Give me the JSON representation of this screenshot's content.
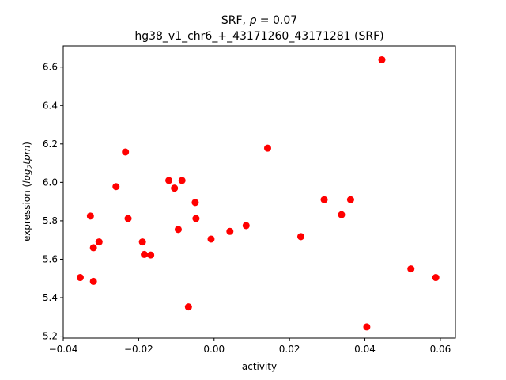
{
  "chart_data": {
    "type": "scatter",
    "title_prefix": "SRF, ",
    "title_rho_symbol": "ρ",
    "title_rho_value": " = 0.07",
    "subtitle": "hg38_v1_chr6_+_43171260_43171281 (SRF)",
    "xlabel": "activity",
    "ylabel_prefix": "expression (",
    "ylabel_log": "log",
    "ylabel_sub": "2",
    "ylabel_tpm": "tpm",
    "ylabel_suffix": ")",
    "xlim": [
      -0.04,
      0.064
    ],
    "ylim": [
      5.19,
      6.71
    ],
    "x_ticks": [
      -0.04,
      -0.02,
      0.0,
      0.02,
      0.04,
      0.06
    ],
    "x_tick_labels": [
      "−0.04",
      "−0.02",
      "0.00",
      "0.02",
      "0.04",
      "0.06"
    ],
    "y_ticks": [
      5.2,
      5.4,
      5.6,
      5.8,
      6.0,
      6.2,
      6.4,
      6.6
    ],
    "y_tick_labels": [
      "5.2",
      "5.4",
      "5.6",
      "5.8",
      "6.0",
      "6.2",
      "6.4",
      "6.6"
    ],
    "grid": false,
    "marker_color": "#ff0000",
    "points": [
      {
        "x": -0.0355,
        "y": 5.505
      },
      {
        "x": -0.0328,
        "y": 5.825
      },
      {
        "x": -0.032,
        "y": 5.66
      },
      {
        "x": -0.032,
        "y": 5.485
      },
      {
        "x": -0.0305,
        "y": 5.69
      },
      {
        "x": -0.026,
        "y": 5.978
      },
      {
        "x": -0.0235,
        "y": 6.158
      },
      {
        "x": -0.0228,
        "y": 5.812
      },
      {
        "x": -0.019,
        "y": 5.69
      },
      {
        "x": -0.0185,
        "y": 5.625
      },
      {
        "x": -0.0168,
        "y": 5.622
      },
      {
        "x": -0.012,
        "y": 6.01
      },
      {
        "x": -0.0105,
        "y": 5.97
      },
      {
        "x": -0.0095,
        "y": 5.755
      },
      {
        "x": -0.0085,
        "y": 6.01
      },
      {
        "x": -0.0068,
        "y": 5.352
      },
      {
        "x": -0.005,
        "y": 5.895
      },
      {
        "x": -0.0048,
        "y": 5.812
      },
      {
        "x": -0.0008,
        "y": 5.705
      },
      {
        "x": 0.0042,
        "y": 5.745
      },
      {
        "x": 0.0085,
        "y": 5.775
      },
      {
        "x": 0.0142,
        "y": 6.178
      },
      {
        "x": 0.023,
        "y": 5.718
      },
      {
        "x": 0.0292,
        "y": 5.91
      },
      {
        "x": 0.0338,
        "y": 5.832
      },
      {
        "x": 0.0362,
        "y": 5.91
      },
      {
        "x": 0.0405,
        "y": 5.248
      },
      {
        "x": 0.0445,
        "y": 6.638
      },
      {
        "x": 0.0522,
        "y": 5.55
      },
      {
        "x": 0.0588,
        "y": 5.505
      }
    ]
  }
}
